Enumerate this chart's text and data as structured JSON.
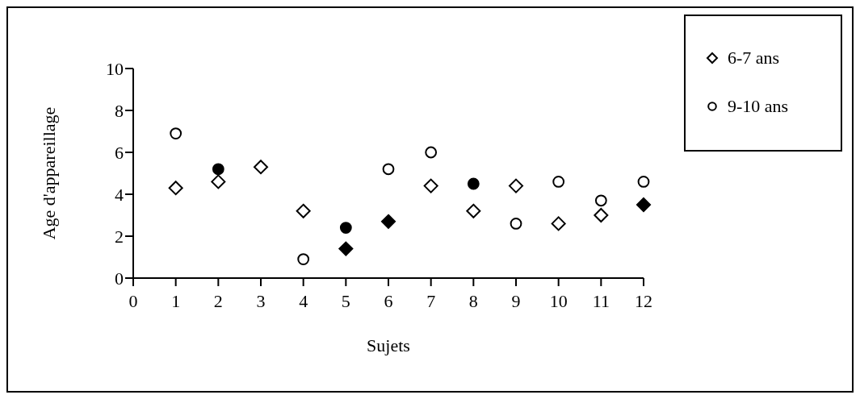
{
  "chart_data": {
    "type": "scatter",
    "xlabel": "Sujets",
    "ylabel": "Age d'appareillage",
    "x": [
      1,
      2,
      3,
      4,
      5,
      6,
      7,
      8,
      9,
      10,
      11,
      12
    ],
    "series": [
      {
        "name": "6-7 ans",
        "marker": "diamond",
        "color": "#000000",
        "colors": [
          "#ffffff",
          "#ffffff",
          "#ffffff",
          "#ffffff",
          "#000000",
          "#000000",
          "#ffffff",
          "#ffffff",
          "#ffffff",
          "#ffffff",
          "#ffffff",
          "#000000"
        ],
        "values": [
          4.3,
          4.6,
          5.3,
          3.2,
          1.4,
          2.7,
          4.4,
          3.2,
          4.4,
          2.6,
          3.0,
          3.5
        ]
      },
      {
        "name": "9-10 ans",
        "marker": "circle",
        "color": "#000000",
        "colors": [
          "#ffffff",
          "#000000",
          null,
          "#ffffff",
          "#000000",
          "#ffffff",
          "#ffffff",
          "#000000",
          "#ffffff",
          "#ffffff",
          "#ffffff",
          "#ffffff"
        ],
        "values": [
          6.9,
          5.2,
          null,
          0.9,
          2.4,
          5.2,
          6.0,
          4.5,
          2.6,
          4.6,
          3.7,
          4.6
        ]
      }
    ],
    "xlim": [
      0,
      12
    ],
    "xticks": [
      0,
      1,
      2,
      3,
      4,
      5,
      6,
      7,
      8,
      9,
      10,
      11,
      12
    ],
    "ylim": [
      0,
      10
    ],
    "yticks": [
      0,
      2,
      4,
      6,
      8,
      10
    ],
    "grid": false,
    "legend": "top right"
  }
}
